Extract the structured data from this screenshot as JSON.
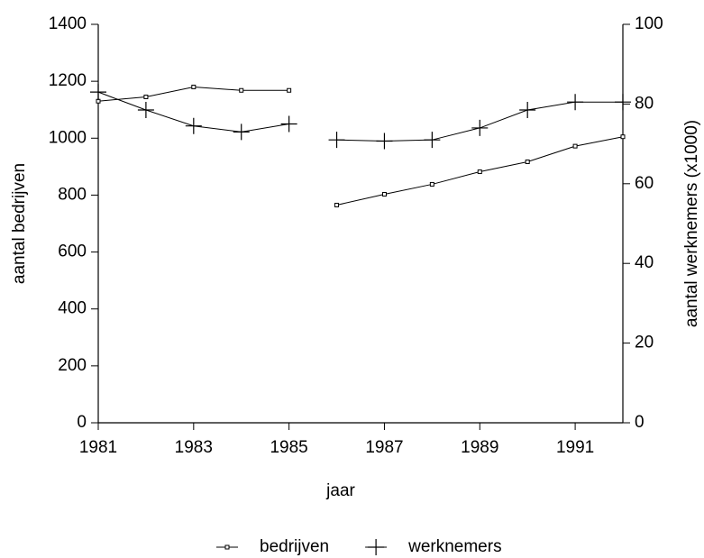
{
  "chart_data": {
    "type": "line",
    "x_label": "jaar",
    "y_label": "aantal bedrijven",
    "y2_label": "aantal werknemers (x1000)",
    "x": [
      1981,
      1982,
      1983,
      1984,
      1985,
      1986,
      1987,
      1988,
      1989,
      1990,
      1991,
      1992
    ],
    "line_break_after": 1985,
    "series": [
      {
        "name": "bedrijven",
        "color": "#000000",
        "marker": "square",
        "values": [
          1130,
          1145,
          1180,
          1168,
          1168,
          765,
          803,
          838,
          882,
          917,
          972,
          1005
        ]
      },
      {
        "name": "werknemers",
        "color": "#000000",
        "marker": "plus",
        "axis": "y2",
        "values": [
          83,
          78.5,
          74.5,
          73,
          75,
          71,
          70.7,
          71,
          74,
          78.5,
          80.5,
          80.5
        ]
      }
    ],
    "xlim": [
      1981,
      1992
    ],
    "xticks": [
      1981,
      1983,
      1985,
      1987,
      1989,
      1991
    ],
    "ylim": [
      0,
      1400
    ],
    "yticks": [
      0,
      200,
      400,
      600,
      800,
      1000,
      1200,
      1400
    ],
    "y2lim": [
      0,
      100
    ],
    "y2ticks": [
      0,
      20,
      40,
      60,
      80,
      100
    ],
    "grid": false,
    "legend": "bottom"
  }
}
